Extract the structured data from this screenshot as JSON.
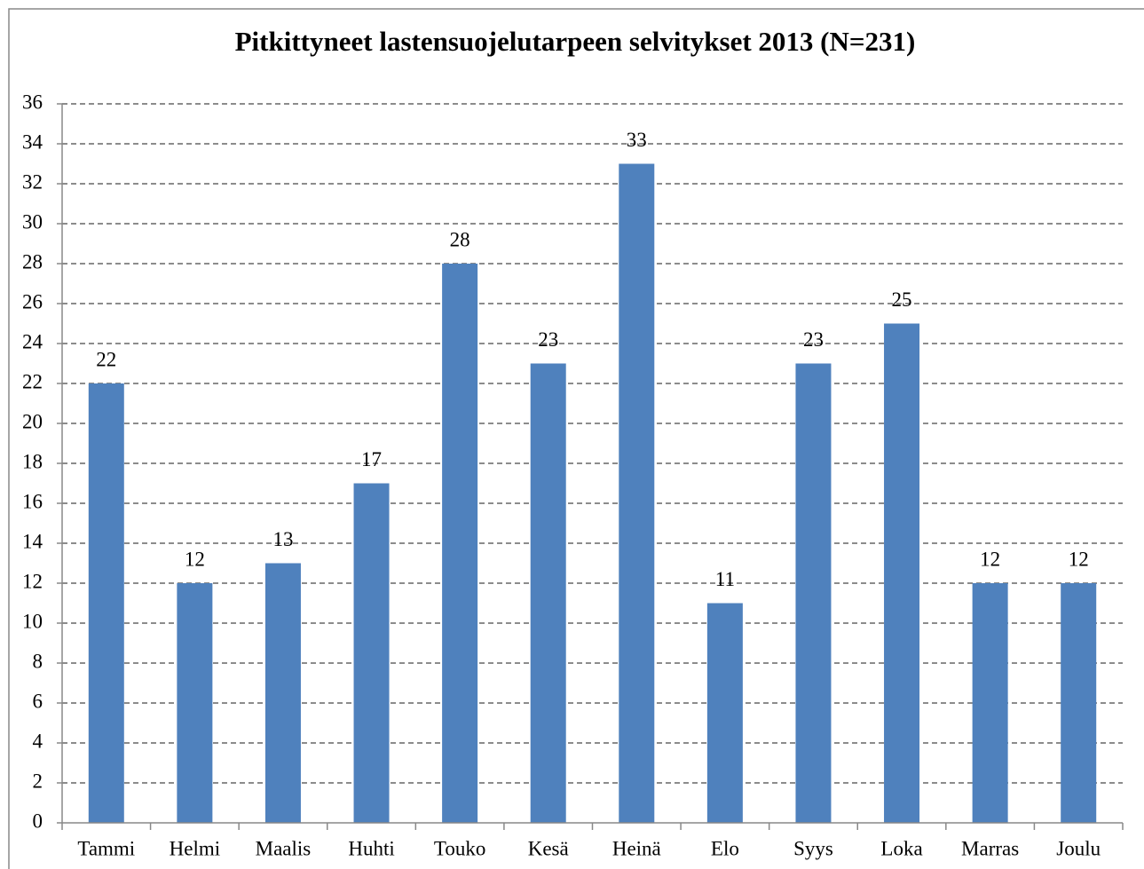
{
  "chart_data": {
    "type": "bar",
    "title": "Pitkittyneet lastensuojelutarpeen selvitykset 2013 (N=231)",
    "categories": [
      "Tammi",
      "Helmi",
      "Maalis",
      "Huhti",
      "Touko",
      "Kesä",
      "Heinä",
      "Elo",
      "Syys",
      "Loka",
      "Marras",
      "Joulu"
    ],
    "values": [
      22,
      12,
      13,
      17,
      28,
      23,
      33,
      11,
      23,
      25,
      12,
      12
    ],
    "color": "#4f81bd",
    "ylim": [
      0,
      36
    ],
    "yticks": [
      0,
      2,
      4,
      6,
      8,
      10,
      12,
      14,
      16,
      18,
      20,
      22,
      24,
      26,
      28,
      30,
      32,
      34,
      36
    ],
    "grid": true
  }
}
